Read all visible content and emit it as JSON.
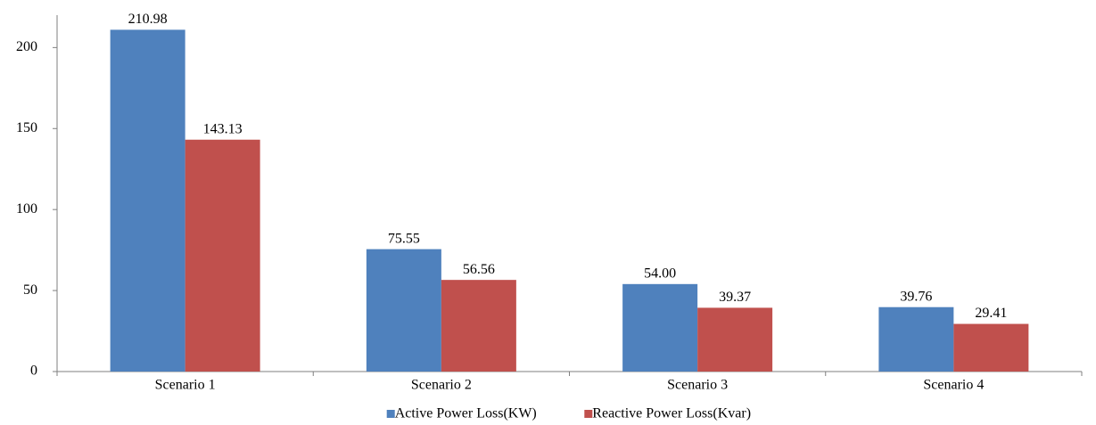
{
  "chart_data": {
    "type": "bar",
    "categories": [
      "Scenario 1",
      "Scenario 2",
      "Scenario 3",
      "Scenario 4"
    ],
    "series": [
      {
        "name": "Active Power Loss(KW)",
        "color": "#4f81bd",
        "values": [
          210.98,
          75.55,
          54.0,
          39.76
        ],
        "value_labels": [
          "210.98",
          "75.55",
          "54.00",
          "39.76"
        ]
      },
      {
        "name": "Reactive Power Loss(Kvar)",
        "color": "#c0504d",
        "values": [
          143.13,
          56.56,
          39.37,
          29.41
        ],
        "value_labels": [
          "143.13",
          "56.56",
          "39.37",
          "29.41"
        ]
      }
    ],
    "ylim": [
      0,
      220
    ],
    "yticks": [
      0,
      50,
      100,
      150,
      200
    ],
    "grid": false,
    "legend": "bottom"
  }
}
